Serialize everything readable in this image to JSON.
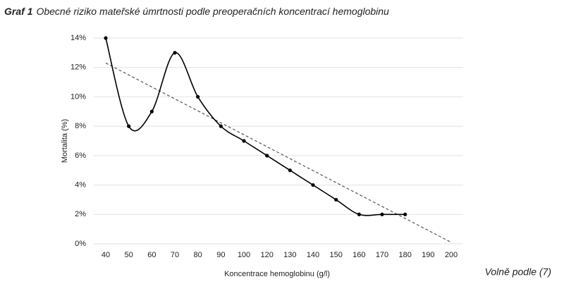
{
  "chart_data": {
    "type": "line",
    "title_number": "Graf 1",
    "title": "Obecné riziko mateřské úmrtnosti podle preoperačních koncentrací hemoglobinu",
    "x_label": "Koncentrace hemoglobinu (g/l)",
    "y_label": "Mortalita (%)",
    "source": "Volně podle (7)",
    "categories": [
      "40",
      "50",
      "60",
      "70",
      "80",
      "90",
      "100",
      "120",
      "130",
      "140",
      "150",
      "160",
      "170",
      "180",
      "190",
      "200"
    ],
    "values": [
      14,
      8,
      9,
      13,
      10,
      8,
      7,
      6,
      5,
      4,
      3,
      2,
      2,
      2,
      null,
      null
    ],
    "color": "#000000",
    "trendline": [
      12.3,
      0.1
    ],
    "trendline_color": "#555555",
    "ylim": [
      0,
      14
    ],
    "yticks": [
      {
        "value": 0,
        "label": "0%"
      },
      {
        "value": 2,
        "label": "2%"
      },
      {
        "value": 4,
        "label": "4%"
      },
      {
        "value": 6,
        "label": "6%"
      },
      {
        "value": 8,
        "label": "8%"
      },
      {
        "value": 10,
        "label": "10%"
      },
      {
        "value": 12,
        "label": "12%"
      },
      {
        "value": 14,
        "label": "14%"
      }
    ],
    "grid": true,
    "smooth": true
  }
}
